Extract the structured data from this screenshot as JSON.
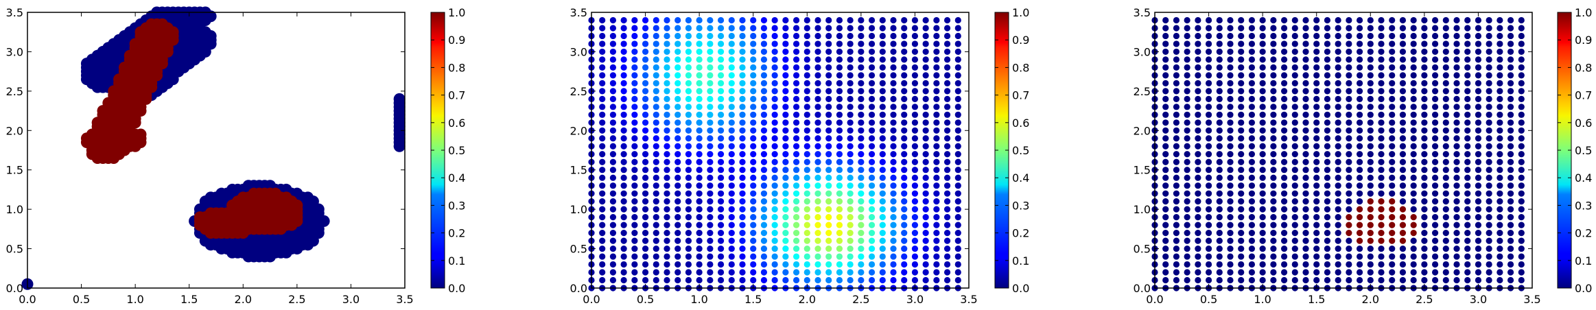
{
  "colormap": "jet",
  "chart_data": [
    {
      "type": "scatter",
      "title": "",
      "xlabel": "",
      "ylabel": "",
      "xlim": [
        0.0,
        3.5
      ],
      "ylim": [
        0.0,
        3.5
      ],
      "xticks": [
        "0.0",
        "0.5",
        "1.0",
        "1.5",
        "2.0",
        "2.5",
        "3.0",
        "3.5"
      ],
      "yticks": [
        "0.0",
        "0.5",
        "1.0",
        "1.5",
        "2.0",
        "2.5",
        "3.0",
        "3.5"
      ],
      "colorbar": {
        "range": [
          0.0,
          1.0
        ],
        "ticks": [
          "0.0",
          "0.1",
          "0.2",
          "0.3",
          "0.4",
          "0.5",
          "0.6",
          "0.7",
          "0.8",
          "0.9",
          "1.0"
        ]
      },
      "grid": false,
      "marker_size": "large",
      "description_of_values": "values are 0 (dark blue) or 1 (dark red); only selected points drawn",
      "regions_value_1": [
        {
          "shape": "band",
          "from": [
            0.72,
            1.78
          ],
          "to": [
            1.2,
            3.2
          ],
          "half_width": 0.17
        },
        {
          "shape": "ellipse",
          "center": [
            0.82,
            1.88
          ],
          "radii": [
            0.28,
            0.14
          ]
        },
        {
          "shape": "ellipse",
          "center": [
            1.85,
            0.83
          ],
          "radii": [
            0.28,
            0.16
          ]
        },
        {
          "shape": "ellipse",
          "center": [
            2.2,
            0.97
          ],
          "radii": [
            0.35,
            0.25
          ]
        }
      ],
      "regions_value_0": [
        {
          "shape": "band",
          "from": [
            0.72,
            2.75
          ],
          "to": [
            1.4,
            3.4
          ],
          "half_width": 0.22
        },
        {
          "shape": "band",
          "from": [
            1.0,
            2.45
          ],
          "to": [
            1.6,
            3.15
          ],
          "half_width": 0.14
        },
        {
          "shape": "ellipse",
          "center": [
            2.15,
            0.85
          ],
          "radii": [
            0.6,
            0.46
          ]
        },
        {
          "shape": "band",
          "from": [
            1.2,
            3.38
          ],
          "to": [
            1.65,
            3.45
          ],
          "half_width": 0.06
        },
        {
          "shape": "line",
          "x": 3.45,
          "y_from": 1.8,
          "y_to": 2.4
        },
        {
          "shape": "point",
          "x": 0.0,
          "y": 0.05
        }
      ]
    },
    {
      "type": "scatter",
      "title": "",
      "xlabel": "",
      "ylabel": "",
      "xlim": [
        0.0,
        3.5
      ],
      "ylim": [
        0.0,
        3.5
      ],
      "xticks": [
        "0.0",
        "0.5",
        "1.0",
        "1.5",
        "2.0",
        "2.5",
        "3.0",
        "3.5"
      ],
      "yticks": [
        "0.0",
        "0.5",
        "1.0",
        "1.5",
        "2.0",
        "2.5",
        "3.0",
        "3.5"
      ],
      "colorbar": {
        "range": [
          0.0,
          1.0
        ],
        "ticks": [
          "0.0",
          "0.1",
          "0.2",
          "0.3",
          "0.4",
          "0.5",
          "0.6",
          "0.7",
          "0.8",
          "0.9",
          "1.0"
        ]
      },
      "grid": false,
      "marker_size": "small",
      "point_grid": {
        "x_start": 0.0,
        "x_end": 3.4,
        "y_start": 0.0,
        "y_end": 3.4,
        "step": 0.1
      },
      "field": {
        "background": 0.03,
        "bumps": [
          {
            "center": [
              2.2,
              0.8
            ],
            "sigma": [
              0.45,
              0.5
            ],
            "amplitude": 0.6
          },
          {
            "center": [
              1.05,
              2.7
            ],
            "sigma": [
              0.45,
              0.6
            ],
            "amplitude": 0.4
          }
        ]
      }
    },
    {
      "type": "scatter",
      "title": "",
      "xlabel": "",
      "ylabel": "",
      "xlim": [
        0.0,
        3.5
      ],
      "ylim": [
        0.0,
        3.5
      ],
      "xticks": [
        "0.0",
        "0.5",
        "1.0",
        "1.5",
        "2.0",
        "2.5",
        "3.0",
        "3.5"
      ],
      "yticks": [
        "0.0",
        "0.5",
        "1.0",
        "1.5",
        "2.0",
        "2.5",
        "3.0",
        "3.5"
      ],
      "colorbar": {
        "range": [
          0.0,
          1.0
        ],
        "ticks": [
          "0.0",
          "0.1",
          "0.2",
          "0.3",
          "0.4",
          "0.5",
          "0.6",
          "0.7",
          "0.8",
          "0.9",
          "1.0"
        ]
      },
      "grid": false,
      "marker_size": "small",
      "point_grid": {
        "x_start": 0.0,
        "x_end": 3.4,
        "y_start": 0.0,
        "y_end": 3.4,
        "step": 0.1
      },
      "high_region": {
        "center": [
          2.1,
          0.82
        ],
        "radii": [
          0.33,
          0.3
        ],
        "value": 1.0
      },
      "low_value": 0.0
    }
  ]
}
